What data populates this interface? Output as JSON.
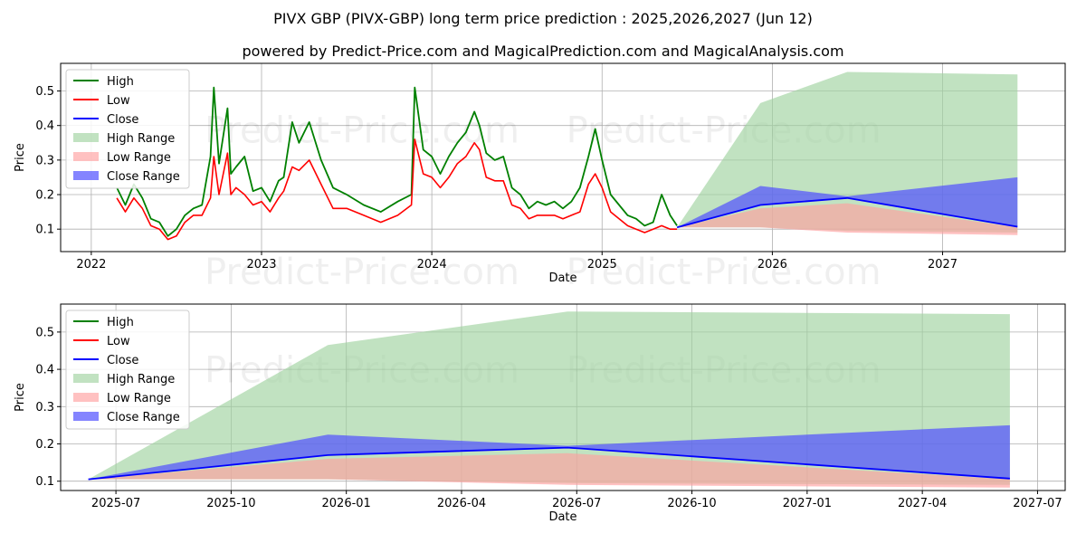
{
  "title": "PIVX GBP (PIVX-GBP) long term price prediction : 2025,2026,2027 (Jun 12)",
  "subtitle": "powered by Predict-Price.com and MagicalPrediction.com and MagicalAnalysis.com",
  "watermark": "Predict-Price.com",
  "colors": {
    "high": "#008000",
    "low": "#ff0000",
    "close": "#0000ff",
    "high_range": "#9fd29f",
    "low_range": "#ff9f9f",
    "close_range": "#5050ff"
  },
  "chart_data": [
    {
      "type": "line",
      "title": "",
      "xlabel": "Date",
      "ylabel": "Price",
      "xlim": [
        2021.82,
        2027.72
      ],
      "ylim": [
        0.035,
        0.58
      ],
      "x_ticks": [
        {
          "value": 2022,
          "label": "2022"
        },
        {
          "value": 2023,
          "label": "2023"
        },
        {
          "value": 2024,
          "label": "2024"
        },
        {
          "value": 2025,
          "label": "2025"
        },
        {
          "value": 2026,
          "label": "2026"
        },
        {
          "value": 2027,
          "label": "2027"
        }
      ],
      "y_ticks": [
        {
          "value": 0.1,
          "label": "0.1"
        },
        {
          "value": 0.2,
          "label": "0.2"
        },
        {
          "value": 0.3,
          "label": "0.3"
        },
        {
          "value": 0.4,
          "label": "0.4"
        },
        {
          "value": 0.5,
          "label": "0.5"
        }
      ],
      "legend": {
        "location": "upper-left",
        "entries": [
          "High",
          "Low",
          "Close",
          "High Range",
          "Low Range",
          "Close Range"
        ]
      },
      "history": {
        "x": [
          2022.15,
          2022.2,
          2022.25,
          2022.3,
          2022.35,
          2022.4,
          2022.45,
          2022.5,
          2022.55,
          2022.6,
          2022.65,
          2022.7,
          2022.72,
          2022.75,
          2022.8,
          2022.82,
          2022.85,
          2022.9,
          2022.95,
          2023.0,
          2023.05,
          2023.1,
          2023.13,
          2023.18,
          2023.22,
          2023.28,
          2023.35,
          2023.42,
          2023.5,
          2023.6,
          2023.7,
          2023.8,
          2023.88,
          2023.9,
          2023.95,
          2024.0,
          2024.05,
          2024.1,
          2024.15,
          2024.2,
          2024.25,
          2024.28,
          2024.32,
          2024.37,
          2024.42,
          2024.47,
          2024.52,
          2024.57,
          2024.62,
          2024.67,
          2024.72,
          2024.77,
          2024.82,
          2024.87,
          2024.92,
          2024.96,
          2025.0,
          2025.05,
          2025.1,
          2025.15,
          2025.2,
          2025.25,
          2025.3,
          2025.35,
          2025.4,
          2025.44
        ],
        "high": [
          0.22,
          0.17,
          0.23,
          0.19,
          0.13,
          0.12,
          0.08,
          0.1,
          0.14,
          0.16,
          0.17,
          0.31,
          0.51,
          0.29,
          0.45,
          0.26,
          0.28,
          0.31,
          0.21,
          0.22,
          0.18,
          0.24,
          0.25,
          0.41,
          0.35,
          0.41,
          0.3,
          0.22,
          0.2,
          0.17,
          0.15,
          0.18,
          0.2,
          0.51,
          0.33,
          0.31,
          0.26,
          0.31,
          0.35,
          0.38,
          0.44,
          0.4,
          0.32,
          0.3,
          0.31,
          0.22,
          0.2,
          0.16,
          0.18,
          0.17,
          0.18,
          0.16,
          0.18,
          0.22,
          0.31,
          0.39,
          0.3,
          0.2,
          0.17,
          0.14,
          0.13,
          0.11,
          0.12,
          0.2,
          0.14,
          0.11
        ],
        "low": [
          0.19,
          0.15,
          0.19,
          0.16,
          0.11,
          0.1,
          0.07,
          0.08,
          0.12,
          0.14,
          0.14,
          0.19,
          0.31,
          0.2,
          0.32,
          0.2,
          0.22,
          0.2,
          0.17,
          0.18,
          0.15,
          0.19,
          0.21,
          0.28,
          0.27,
          0.3,
          0.23,
          0.16,
          0.16,
          0.14,
          0.12,
          0.14,
          0.17,
          0.36,
          0.26,
          0.25,
          0.22,
          0.25,
          0.29,
          0.31,
          0.35,
          0.33,
          0.25,
          0.24,
          0.24,
          0.17,
          0.16,
          0.13,
          0.14,
          0.14,
          0.14,
          0.13,
          0.14,
          0.15,
          0.23,
          0.26,
          0.22,
          0.15,
          0.13,
          0.11,
          0.1,
          0.09,
          0.1,
          0.11,
          0.1,
          0.1
        ]
      },
      "forecast": {
        "x": [
          2025.44,
          2025.93,
          2026.44,
          2027.44
        ],
        "close": [
          0.105,
          0.17,
          0.19,
          0.107
        ],
        "high_range": {
          "lower": [
            0.105,
            0.105,
            0.095,
            0.09
          ],
          "upper": [
            0.105,
            0.465,
            0.555,
            0.548
          ]
        },
        "low_range": {
          "lower": [
            0.105,
            0.105,
            0.09,
            0.083
          ],
          "upper": [
            0.105,
            0.16,
            0.175,
            0.105
          ]
        },
        "close_range": {
          "lower": [
            0.105,
            0.17,
            0.19,
            0.107
          ],
          "upper": [
            0.105,
            0.225,
            0.195,
            0.25
          ]
        }
      }
    },
    {
      "type": "line",
      "title": "",
      "xlabel": "Date",
      "ylabel": "Price",
      "xlim": [
        2025.38,
        2027.56
      ],
      "ylim": [
        0.075,
        0.575
      ],
      "x_ticks": [
        {
          "value": 2025.5,
          "label": "2025-07"
        },
        {
          "value": 2025.75,
          "label": "2025-10"
        },
        {
          "value": 2026.0,
          "label": "2026-01"
        },
        {
          "value": 2026.25,
          "label": "2026-04"
        },
        {
          "value": 2026.5,
          "label": "2026-07"
        },
        {
          "value": 2026.75,
          "label": "2026-10"
        },
        {
          "value": 2027.0,
          "label": "2027-01"
        },
        {
          "value": 2027.25,
          "label": "2027-04"
        },
        {
          "value": 2027.5,
          "label": "2027-07"
        }
      ],
      "y_ticks": [
        {
          "value": 0.1,
          "label": "0.1"
        },
        {
          "value": 0.2,
          "label": "0.2"
        },
        {
          "value": 0.3,
          "label": "0.3"
        },
        {
          "value": 0.4,
          "label": "0.4"
        },
        {
          "value": 0.5,
          "label": "0.5"
        }
      ],
      "legend": {
        "location": "upper-left",
        "entries": [
          "High",
          "Low",
          "Close",
          "High Range",
          "Low Range",
          "Close Range"
        ]
      },
      "forecast": {
        "x": [
          2025.44,
          2025.96,
          2026.48,
          2027.44
        ],
        "close": [
          0.105,
          0.17,
          0.19,
          0.107
        ],
        "high_range": {
          "lower": [
            0.105,
            0.105,
            0.095,
            0.09
          ],
          "upper": [
            0.105,
            0.465,
            0.555,
            0.548
          ]
        },
        "low_range": {
          "lower": [
            0.105,
            0.105,
            0.09,
            0.083
          ],
          "upper": [
            0.105,
            0.16,
            0.175,
            0.105
          ]
        },
        "close_range": {
          "lower": [
            0.105,
            0.17,
            0.19,
            0.107
          ],
          "upper": [
            0.105,
            0.225,
            0.195,
            0.25
          ]
        }
      }
    }
  ]
}
